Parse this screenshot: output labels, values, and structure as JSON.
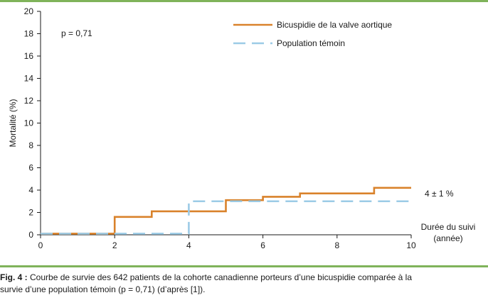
{
  "chart_data": {
    "type": "line",
    "ylabel": "Mortalité (%)",
    "xlabel_lines": [
      "Durée du suivi",
      "(année)"
    ],
    "xlim": [
      0,
      10
    ],
    "ylim": [
      0,
      20
    ],
    "xticks": [
      0,
      2,
      4,
      6,
      8,
      10
    ],
    "yticks": [
      0,
      2,
      4,
      6,
      8,
      10,
      12,
      14,
      16,
      18,
      20
    ],
    "grid": false,
    "legend_position": "top-right",
    "annotation_p": "p = 0,71",
    "annotation_end": "4 ± 1 %",
    "series": [
      {
        "name": "Bicuspidie de la valve aortique",
        "color": "#d9822b",
        "style": "solid",
        "step": true,
        "points": [
          [
            0,
            0.1
          ],
          [
            2,
            1.6
          ],
          [
            3,
            2.1
          ],
          [
            5,
            3.1
          ],
          [
            6,
            3.4
          ],
          [
            7,
            3.7
          ],
          [
            9,
            4.2
          ],
          [
            10,
            4.2
          ]
        ]
      },
      {
        "name": "Population témoin",
        "color": "#9ccbe6",
        "style": "dashed",
        "step": true,
        "points": [
          [
            0,
            0.1
          ],
          [
            4,
            3.0
          ],
          [
            10,
            3.0
          ]
        ]
      }
    ]
  },
  "caption": {
    "lead": "Fig. 4 :",
    "line1": " Courbe de survie des 642 patients de la cohorte canadienne porteurs d’une bicuspidie comparée à la",
    "line2": "survie d’une population témoin (p = 0,71) (d’après [1])."
  }
}
